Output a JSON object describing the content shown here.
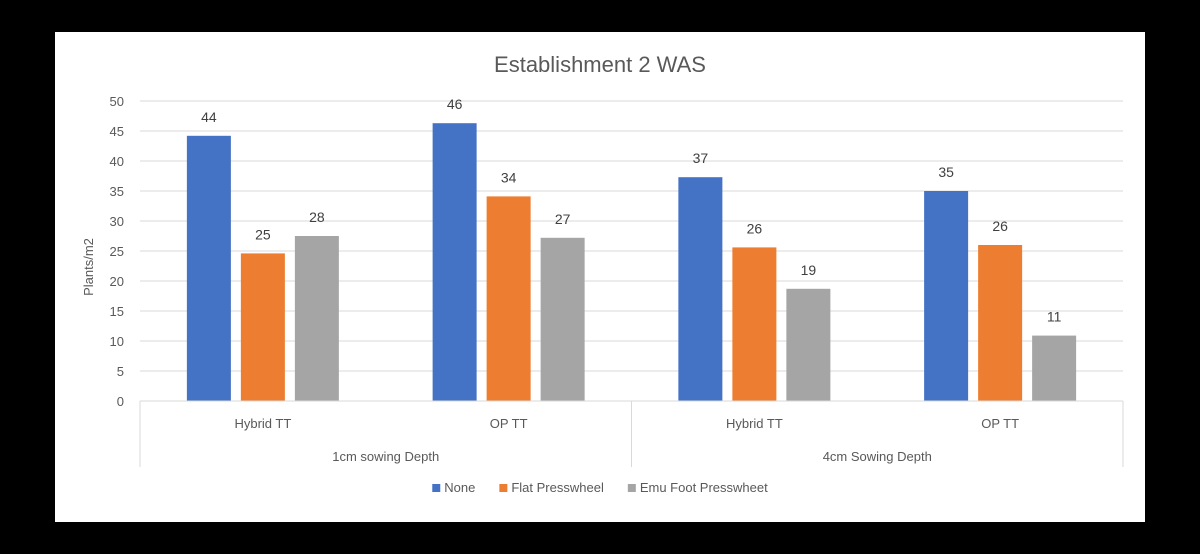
{
  "chart_data": {
    "type": "bar",
    "title": "Establishment 2 WAS",
    "ylabel": "Plants/m2",
    "xlabel": "",
    "ylim": [
      0,
      50
    ],
    "ytick_step": 5,
    "grid": true,
    "legend_position": "bottom",
    "categories": [
      "Hybrid TT",
      "OP TT",
      "Hybrid TT",
      "OP TT"
    ],
    "groups": [
      {
        "label": "1cm sowing Depth",
        "categories": [
          0,
          1
        ]
      },
      {
        "label": "4cm Sowing Depth",
        "categories": [
          2,
          3
        ]
      }
    ],
    "series": [
      {
        "name": "None",
        "color": "#4472C4",
        "values": [
          44.2,
          46.3,
          37.3,
          35.0
        ],
        "labels": [
          "44",
          "46",
          "37",
          "35"
        ]
      },
      {
        "name": "Flat Presswheel",
        "color": "#ED7D31",
        "values": [
          24.6,
          34.1,
          25.6,
          26.0
        ],
        "labels": [
          "25",
          "34",
          "26",
          "26"
        ]
      },
      {
        "name": "Emu Foot Presswheet",
        "color": "#A5A5A5",
        "values": [
          27.5,
          27.2,
          18.7,
          10.9
        ],
        "labels": [
          "28",
          "27",
          "19",
          "11"
        ]
      }
    ]
  }
}
